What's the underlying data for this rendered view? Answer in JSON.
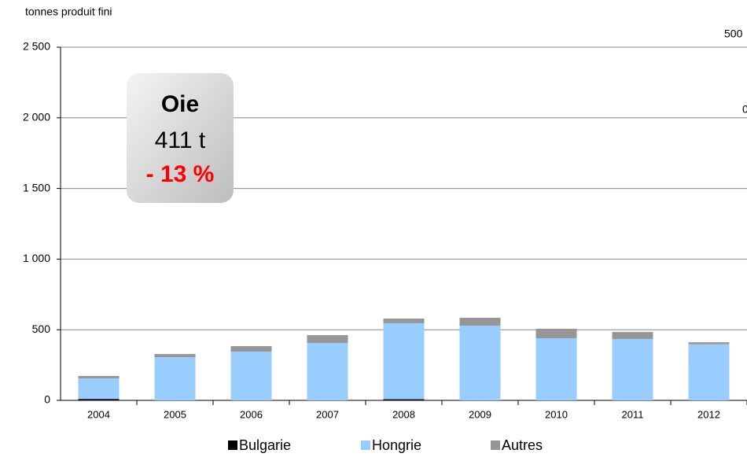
{
  "chart_data": {
    "type": "stacked_bar",
    "y_axis_label": "tonnes produit fini",
    "categories": [
      "2004",
      "2005",
      "2006",
      "2007",
      "2008",
      "2009",
      "2010",
      "2011",
      "2012"
    ],
    "series": [
      {
        "name": "Bulgarie",
        "color": "#000000",
        "values": [
          10,
          0,
          0,
          0,
          8,
          0,
          0,
          0,
          0
        ]
      },
      {
        "name": "Hongrie",
        "color": "#99ccff",
        "values": [
          146,
          306,
          345,
          406,
          538,
          529,
          440,
          434,
          397
        ]
      },
      {
        "name": "Autres",
        "color": "#969696",
        "values": [
          17,
          22,
          39,
          56,
          33,
          56,
          67,
          50,
          14
        ]
      }
    ],
    "ylim": [
      0,
      2500
    ],
    "yticks": [
      0,
      500,
      {
        "value": 1000,
        "label": "1 000"
      },
      {
        "value": 1500,
        "label": "1 500"
      },
      {
        "value": 2000,
        "label": "2 000"
      },
      {
        "value": 2500,
        "label": "2 500"
      }
    ],
    "grid": true,
    "legend": "bottom",
    "callout": {
      "title": "Oie",
      "value": "411 t",
      "change": "- 13 %"
    },
    "clipped_labels": [
      "500",
      "0"
    ]
  }
}
